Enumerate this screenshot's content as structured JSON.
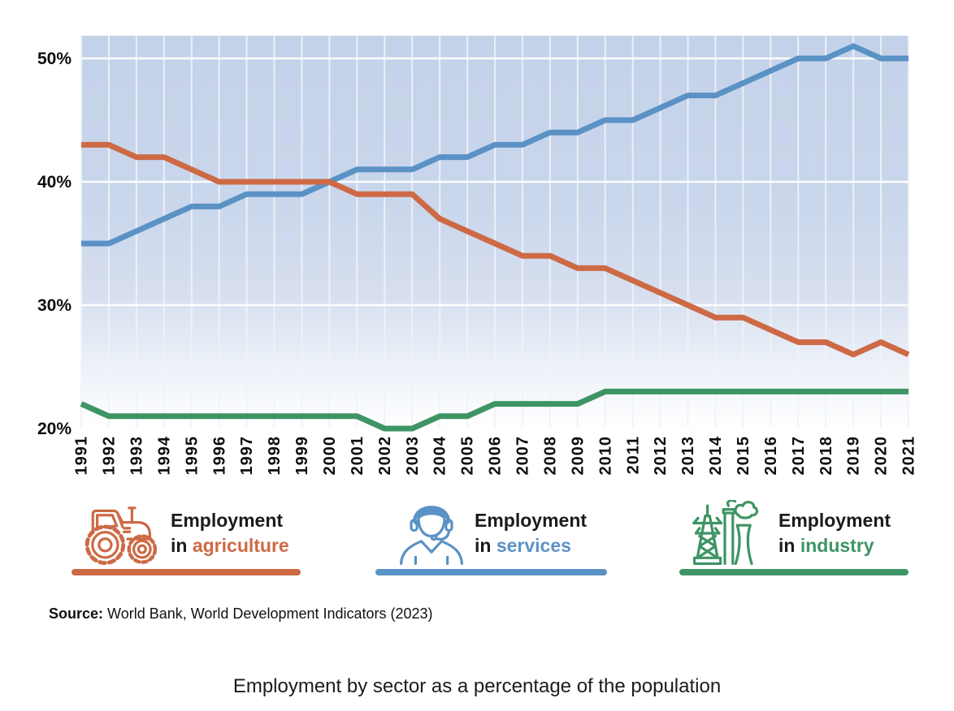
{
  "chart_data": {
    "type": "line",
    "title": "Employment by sector as a percentage of the population",
    "x_years": [
      "1991",
      "1992",
      "1993",
      "1994",
      "1995",
      "1996",
      "1997",
      "1998",
      "1999",
      "2000",
      "2001",
      "2002",
      "2003",
      "2004",
      "2005",
      "2006",
      "2007",
      "2008",
      "2009",
      "2010",
      "2011",
      "2012",
      "2013",
      "2014",
      "2015",
      "2016",
      "2017",
      "2018",
      "2019",
      "2020",
      "2021"
    ],
    "y_ticks": [
      {
        "value": 50,
        "label": "50%"
      },
      {
        "value": 40,
        "label": "40%"
      },
      {
        "value": 30,
        "label": "30%"
      },
      {
        "value": 20,
        "label": "20%"
      }
    ],
    "ylim": [
      19.3,
      51.9
    ],
    "grid": true,
    "legend_position": "bottom",
    "series": [
      {
        "name": "Employment in agriculture",
        "color": "#cd6a45",
        "values": [
          43,
          43,
          42,
          42,
          41,
          40,
          40,
          40,
          40,
          40,
          39,
          39,
          39,
          37,
          36,
          35,
          34,
          34,
          33,
          33,
          32,
          31,
          30,
          29,
          29,
          28,
          27,
          27,
          26,
          27,
          26
        ]
      },
      {
        "name": "Employment in services",
        "color": "#5b92c5",
        "values": [
          35,
          35,
          36,
          37,
          38,
          38,
          39,
          39,
          39,
          40,
          41,
          41,
          41,
          42,
          42,
          43,
          43,
          44,
          44,
          45,
          45,
          46,
          47,
          47,
          48,
          49,
          50,
          50,
          51,
          50,
          50
        ]
      },
      {
        "name": "Employment in industry",
        "color": "#3e9464",
        "values": [
          22,
          21,
          21,
          21,
          21,
          21,
          21,
          21,
          21,
          21,
          21,
          20,
          20,
          21,
          21,
          22,
          22,
          22,
          22,
          23,
          23,
          23,
          23,
          23,
          23,
          23,
          23,
          23,
          23,
          23,
          23
        ]
      }
    ]
  },
  "legend": {
    "items": [
      {
        "line1": "Employment",
        "line2_prefix": "in ",
        "line2_accent": "agriculture",
        "color": "#cd6a45",
        "icon": "tractor"
      },
      {
        "line1": "Employment",
        "line2_prefix": "in ",
        "line2_accent": "services",
        "color": "#5b92c5",
        "icon": "support-agent"
      },
      {
        "line1": "Employment",
        "line2_prefix": "in ",
        "line2_accent": "industry",
        "color": "#3e9464",
        "icon": "factory"
      }
    ]
  },
  "source": {
    "label": "Source:",
    "text": " World Bank, World Development Indicators (2023)"
  },
  "caption": "Employment by sector as a percentage of the population",
  "background": {
    "plot_top": "#c4d2e9",
    "plot_bottom": "#ffffff",
    "gridline": "#f0f3f8"
  }
}
